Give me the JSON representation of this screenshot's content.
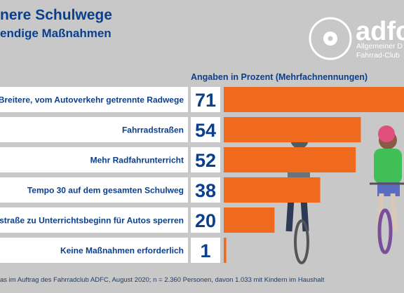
{
  "header": {
    "title": "nere Schulwege",
    "subtitle": "endige Maßnahmen",
    "axis_note": "Angaben in Prozent (Mehrfachnennungen)"
  },
  "logo": {
    "word": "adfc",
    "tagline_1": "Allgemeiner D",
    "tagline_2": "Fahrrad-Club"
  },
  "footer": {
    "source": "as im Auftrag des Fahrradclub ADFC, August 2020; n = 2.360 Personen, davon 1.033 mit Kindern im Haushalt"
  },
  "colors": {
    "bar": "#f06a1e",
    "label_box": "#ffffff",
    "text": "#0b3f8c",
    "background": "#c8c8c8"
  },
  "chart_data": {
    "type": "bar",
    "orientation": "horizontal",
    "categories": [
      "Breitere, vom Autoverkehr getrennte Radwege",
      "Fahrradstraßen",
      "Mehr Radfahrunterricht",
      "Tempo 30 auf dem gesamten Schulweg",
      "Schulstraße zu Unterrichtsbeginn für Autos sperren",
      "Keine Maßnahmen erforderlich"
    ],
    "values": [
      71,
      54,
      52,
      38,
      20,
      1
    ],
    "value_labels": [
      "71",
      "54",
      "52",
      "38",
      "20",
      "1"
    ],
    "unit": "Prozent",
    "xlim": [
      0,
      71
    ],
    "grid": false,
    "legend": "none"
  }
}
